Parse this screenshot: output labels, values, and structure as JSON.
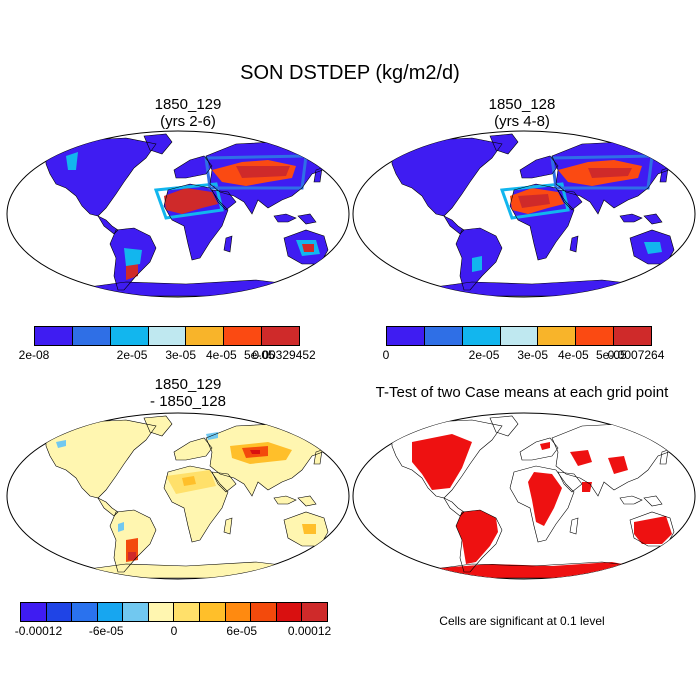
{
  "figure": {
    "title": "SON DSTDEP (kg/m2/d)"
  },
  "panels": [
    {
      "title_line1": "1850_129",
      "title_line2": "(yrs 2-6)",
      "colorbar": {
        "colors": [
          "#3f1cf2",
          "#2f6fe6",
          "#12b6ee",
          "#bfe8f0",
          "#f8b42a",
          "#fb4a12",
          "#cf2a2a"
        ],
        "labels": [
          "2e-08",
          "2e-05",
          "3e-05",
          "4e-05",
          "5e-05",
          "0.00329452"
        ]
      }
    },
    {
      "title_line1": "1850_128",
      "title_line2": "(yrs 4-8)",
      "colorbar": {
        "colors": [
          "#3f1cf2",
          "#2f6fe6",
          "#12b6ee",
          "#bfe8f0",
          "#f8b42a",
          "#fb4a12",
          "#cf2a2a"
        ],
        "labels": [
          "0",
          "2e-05",
          "3e-05",
          "4e-05",
          "5e-05",
          "0.0007264"
        ]
      }
    },
    {
      "title_line1": "1850_129",
      "title_line2": "- 1850_128",
      "colorbar": {
        "colors": [
          "#3f1cf2",
          "#1f44e6",
          "#2a72ee",
          "#17a6f0",
          "#71c8f0",
          "#fff6b0",
          "#ffe06a",
          "#ffbf2a",
          "#ff8a10",
          "#f34a0c",
          "#d91010",
          "#cf2a2a"
        ],
        "labels": [
          "-0.00012",
          "-6e-05",
          "0",
          "6e-05",
          "0.00012"
        ]
      }
    },
    {
      "title_line1": "T-Test of two Case means at each grid point",
      "note": "Cells are significant at 0.1 level"
    }
  ],
  "colors": {
    "land_low": "#3f1cf2",
    "diff_neutral": "#fff6b0",
    "significant": "#ee1111",
    "coast": "#000000"
  }
}
